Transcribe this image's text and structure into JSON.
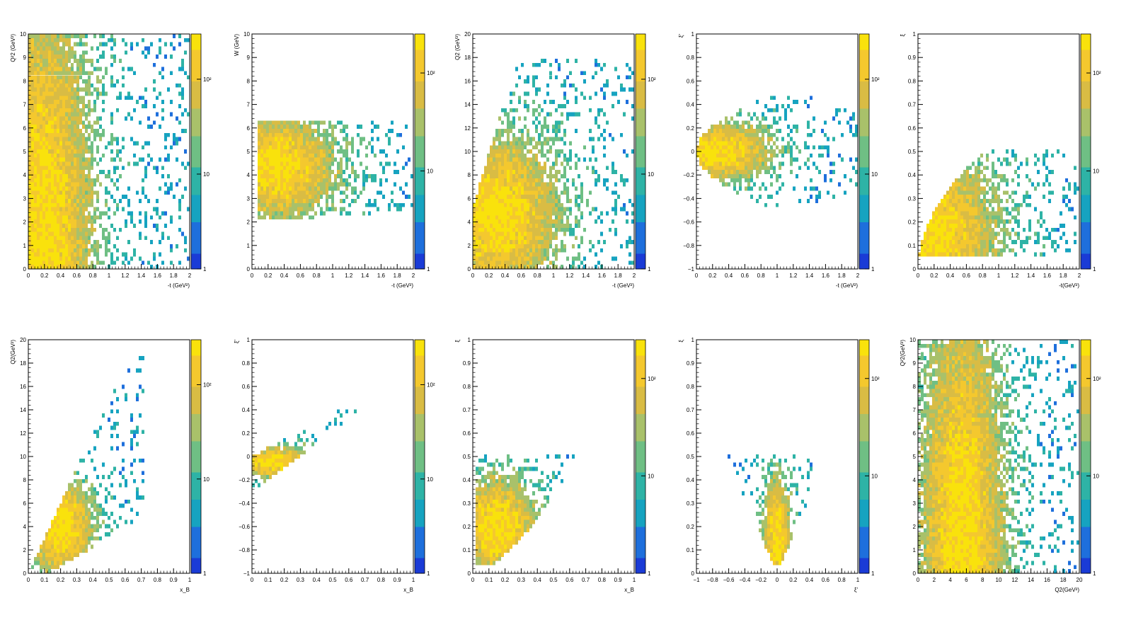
{
  "palette": {
    "colors": [
      "#1a3bd6",
      "#1e6fdc",
      "#16a3c0",
      "#2eb3a6",
      "#6fbf84",
      "#a9c16a",
      "#d9bc44",
      "#f4c82e",
      "#f9e20c"
    ],
    "axis": "#000000",
    "frame": "#000000"
  },
  "chart_data": [
    {
      "type": "heatmap",
      "panel": "top-1",
      "xlabel": "-t (GeV²)",
      "ylabel": "Q²2 (GeV²)",
      "xlim": [
        0,
        2
      ],
      "ylim": [
        0,
        10
      ],
      "x_ticks": [
        "0",
        "0.2",
        "0.4",
        "0.6",
        "0.8",
        "1",
        "1.2",
        "1.4",
        "1.6",
        "1.8",
        "2"
      ],
      "y_ticks": [
        "0",
        "1",
        "2",
        "3",
        "4",
        "5",
        "6",
        "7",
        "8",
        "9",
        "10"
      ],
      "z_scale": "log",
      "z_ticks": [
        "1",
        "10",
        "10²"
      ],
      "z_tick_values": [
        1,
        10,
        100
      ],
      "z_max": 300,
      "peak": {
        "x": 0.18,
        "y": 1.5
      },
      "spread": {
        "x": 0.35,
        "y": 6.0
      },
      "bins": [
        100,
        100
      ]
    },
    {
      "type": "heatmap",
      "panel": "top-2",
      "xlabel": "-t (GeV²)",
      "ylabel": "W (GeV)",
      "xlim": [
        0,
        2
      ],
      "ylim": [
        0,
        10
      ],
      "x_ticks": [
        "0",
        "0.2",
        "0.4",
        "0.6",
        "0.8",
        "1",
        "1.2",
        "1.4",
        "1.6",
        "1.8",
        "2"
      ],
      "y_ticks": [
        "0",
        "1",
        "2",
        "3",
        "4",
        "5",
        "6",
        "7",
        "8",
        "9",
        "10"
      ],
      "z_scale": "log",
      "z_ticks": [
        "1",
        "10",
        "10²"
      ],
      "z_tick_values": [
        1,
        10,
        100
      ],
      "z_max": 250,
      "region": {
        "xmin": 0.07,
        "xmax": 2.0,
        "ymin": 2.0,
        "ymax": 6.35
      },
      "peak": {
        "x": 0.28,
        "y": 4.3
      },
      "spread": {
        "x": 0.45,
        "y": 1.3
      },
      "bins": [
        100,
        100
      ]
    },
    {
      "type": "heatmap",
      "panel": "top-3",
      "xlabel": "-t (GeV²)",
      "ylabel": "Q2 (GeV²)",
      "xlim": [
        0,
        2
      ],
      "ylim": [
        0,
        20
      ],
      "x_ticks": [
        "0",
        "0.2",
        "0.4",
        "0.6",
        "0.8",
        "1",
        "1.2",
        "1.4",
        "1.6",
        "1.8",
        "2"
      ],
      "y_ticks": [
        "0",
        "2",
        "4",
        "6",
        "8",
        "10",
        "12",
        "14",
        "16",
        "18",
        "20"
      ],
      "z_scale": "log",
      "z_ticks": [
        "1",
        "10",
        "10²"
      ],
      "z_tick_values": [
        1,
        10,
        100
      ],
      "z_max": 300,
      "peak": {
        "x": 0.3,
        "y": 4.5
      },
      "spread": {
        "x": 0.45,
        "y": 4.0
      },
      "bins": [
        100,
        100
      ]
    },
    {
      "type": "heatmap",
      "panel": "top-4",
      "xlabel": "-t (GeV²)",
      "ylabel": "ξ'",
      "xlim": [
        0,
        2
      ],
      "ylim": [
        -1,
        1
      ],
      "x_ticks": [
        "0",
        "0.2",
        "0.4",
        "0.6",
        "0.8",
        "1",
        "1.2",
        "1.4",
        "1.6",
        "1.8",
        "2"
      ],
      "y_ticks": [
        "−1",
        "−0.8",
        "−0.6",
        "−0.4",
        "−0.2",
        "0",
        "0.2",
        "0.4",
        "0.6",
        "0.8",
        "1"
      ],
      "z_scale": "log",
      "z_ticks": [
        "1",
        "10",
        "10²"
      ],
      "z_tick_values": [
        1,
        10,
        100
      ],
      "z_max": 300,
      "peak": {
        "x": 0.25,
        "y": 0.0
      },
      "spread": {
        "x": 0.4,
        "y": 0.15
      },
      "bins": [
        100,
        100
      ]
    },
    {
      "type": "heatmap",
      "panel": "top-5",
      "xlabel": "-t(GeV²)",
      "ylabel": "ξ",
      "xlim": [
        0,
        2
      ],
      "ylim": [
        0,
        1
      ],
      "x_ticks": [
        "0",
        "0.2",
        "0.4",
        "0.6",
        "0.8",
        "1",
        "1.2",
        "1.4",
        "1.6",
        "1.8",
        "2"
      ],
      "y_ticks": [
        "0",
        "0.1",
        "0.2",
        "0.3",
        "0.4",
        "0.5",
        "0.6",
        "0.7",
        "0.8",
        "0.9",
        "1"
      ],
      "z_scale": "log",
      "z_ticks": [
        "1",
        "10",
        "10²"
      ],
      "z_tick_values": [
        1,
        10,
        100
      ],
      "z_max": 250,
      "peak": {
        "x": 0.12,
        "y": 0.15
      },
      "spread": {
        "x": 0.5,
        "y": 0.2
      },
      "bins": [
        100,
        100
      ]
    },
    {
      "type": "heatmap",
      "panel": "bottom-1",
      "xlabel": "x_B",
      "ylabel": "Q2(GeV²)",
      "xlim": [
        0,
        1
      ],
      "ylim": [
        0,
        20
      ],
      "x_ticks": [
        "0",
        "0.1",
        "0.2",
        "0.3",
        "0.4",
        "0.5",
        "0.6",
        "0.7",
        "0.8",
        "0.9",
        "1"
      ],
      "y_ticks": [
        "0",
        "2",
        "4",
        "6",
        "8",
        "10",
        "12",
        "14",
        "16",
        "18",
        "20"
      ],
      "z_scale": "log",
      "z_ticks": [
        "1",
        "10",
        "10²"
      ],
      "z_tick_values": [
        1,
        10,
        100
      ],
      "z_max": 300,
      "peak": {
        "x": 0.2,
        "y": 4.0
      },
      "spread": {
        "x": 0.12,
        "y": 2.5
      },
      "bins": [
        100,
        100
      ]
    },
    {
      "type": "heatmap",
      "panel": "bottom-2",
      "xlabel": "x_B",
      "ylabel": "ξ'",
      "xlim": [
        0,
        1
      ],
      "ylim": [
        -1,
        1
      ],
      "x_ticks": [
        "0",
        "0.1",
        "0.2",
        "0.3",
        "0.4",
        "0.5",
        "0.6",
        "0.7",
        "0.8",
        "0.9",
        "1"
      ],
      "y_ticks": [
        "−1",
        "−0.8",
        "−0.6",
        "−0.4",
        "−0.2",
        "0",
        "0.2",
        "0.4",
        "0.6",
        "0.8",
        "1"
      ],
      "z_scale": "log",
      "z_ticks": [
        "1",
        "10",
        "10²"
      ],
      "z_tick_values": [
        1,
        10,
        100
      ],
      "z_max": 300,
      "peak": {
        "x": 0.15,
        "y": -0.05
      },
      "spread": {
        "x": 0.15,
        "y": 0.08
      },
      "bins": [
        100,
        100
      ]
    },
    {
      "type": "heatmap",
      "panel": "bottom-3",
      "xlabel": "x_B",
      "ylabel": "ξ",
      "xlim": [
        0,
        1
      ],
      "ylim": [
        0,
        1
      ],
      "x_ticks": [
        "0",
        "0.1",
        "0.2",
        "0.3",
        "0.4",
        "0.5",
        "0.6",
        "0.7",
        "0.8",
        "0.9",
        "1"
      ],
      "y_ticks": [
        "0",
        "0.1",
        "0.2",
        "0.3",
        "0.4",
        "0.5",
        "0.6",
        "0.7",
        "0.8",
        "0.9",
        "1"
      ],
      "z_scale": "log",
      "z_ticks": [
        "1",
        "10",
        "10²"
      ],
      "z_tick_values": [
        1,
        10,
        100
      ],
      "z_max": 250,
      "peak": {
        "x": 0.15,
        "y": 0.2
      },
      "spread": {
        "x": 0.15,
        "y": 0.12
      },
      "bins": [
        100,
        100
      ]
    },
    {
      "type": "heatmap",
      "panel": "bottom-4",
      "xlabel": "ξ'",
      "ylabel": "ξ",
      "xlim": [
        -1,
        1
      ],
      "ylim": [
        0,
        1
      ],
      "x_ticks": [
        "−1",
        "−0.8",
        "−0.6",
        "−0.4",
        "−0.2",
        "0",
        "0.2",
        "0.4",
        "0.6",
        "0.8",
        "1"
      ],
      "y_ticks": [
        "0",
        "0.1",
        "0.2",
        "0.3",
        "0.4",
        "0.5",
        "0.6",
        "0.7",
        "0.8",
        "0.9",
        "1"
      ],
      "z_scale": "log",
      "z_ticks": [
        "1",
        "10",
        "10²"
      ],
      "z_tick_values": [
        1,
        10,
        100
      ],
      "z_max": 250,
      "peak": {
        "x": 0.0,
        "y": 0.15
      },
      "spread": {
        "x": 0.1,
        "y": 0.15
      },
      "bins": [
        100,
        100
      ]
    },
    {
      "type": "heatmap",
      "panel": "bottom-5",
      "xlabel": "Q2(GeV²)",
      "ylabel": "Q²2(GeV²)",
      "xlim": [
        0,
        20
      ],
      "ylim": [
        0,
        10
      ],
      "x_ticks": [
        "0",
        "2",
        "4",
        "6",
        "8",
        "10",
        "12",
        "14",
        "16",
        "18",
        "20"
      ],
      "y_ticks": [
        "0",
        "1",
        "2",
        "3",
        "4",
        "5",
        "6",
        "7",
        "8",
        "9",
        "10"
      ],
      "z_scale": "log",
      "z_ticks": [
        "1",
        "10",
        "10²"
      ],
      "z_tick_values": [
        1,
        10,
        100
      ],
      "z_max": 250,
      "peak": {
        "x": 5.5,
        "y": 1.5
      },
      "spread": {
        "x": 3.0,
        "y": 6.0
      },
      "bins": [
        100,
        100
      ]
    }
  ]
}
